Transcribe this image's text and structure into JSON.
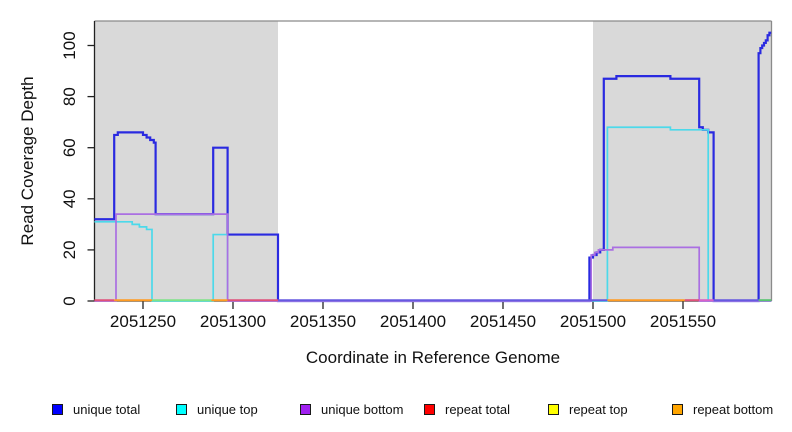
{
  "axes": {
    "x_title": "Coordinate in Reference Genome",
    "y_title": "Read Coverage Depth"
  },
  "legend": {
    "items": [
      {
        "label": "unique total",
        "color": "#0000ff"
      },
      {
        "label": "unique top",
        "color": "#00ffff"
      },
      {
        "label": "unique bottom",
        "color": "#a020f0"
      },
      {
        "label": "repeat total",
        "color": "#ff0000"
      },
      {
        "label": "repeat top",
        "color": "#ffff00"
      },
      {
        "label": "repeat bottom",
        "color": "#ffa500"
      }
    ]
  },
  "chart_data": {
    "type": "line",
    "title": "",
    "xlabel": "Coordinate in Reference Genome",
    "ylabel": "Read Coverage Depth",
    "xlim": [
      2051223,
      2051599
    ],
    "ylim": [
      0,
      111
    ],
    "x_ticks": [
      2051250,
      2051300,
      2051350,
      2051400,
      2051450,
      2051500,
      2051550
    ],
    "y_ticks": [
      0,
      20,
      40,
      60,
      80,
      100
    ],
    "grid": false,
    "legend_position": "bottom",
    "highlight_bands": {
      "color": "#d9d9d9",
      "regions": [
        {
          "x0": 2051223,
          "x1": 2051325
        },
        {
          "x0": 2051500,
          "x1": 2051599
        }
      ]
    },
    "series": [
      {
        "name": "unique total",
        "legend_color": "#0000ff",
        "line_color": "#2a2ae0",
        "width": 2.2,
        "steps": [
          [
            2051223,
            32
          ],
          [
            2051234,
            65
          ],
          [
            2051236,
            66
          ],
          [
            2051250,
            65
          ],
          [
            2051252,
            64
          ],
          [
            2051254,
            63
          ],
          [
            2051256,
            62
          ],
          [
            2051257,
            34
          ],
          [
            2051289,
            60
          ],
          [
            2051297,
            26
          ],
          [
            2051325,
            0
          ],
          [
            2051498,
            17
          ],
          [
            2051500,
            18
          ],
          [
            2051502,
            19
          ],
          [
            2051504,
            20
          ],
          [
            2051506,
            87
          ],
          [
            2051513,
            88
          ],
          [
            2051543,
            87
          ],
          [
            2051559,
            68
          ],
          [
            2051561,
            67
          ],
          [
            2051564,
            66
          ],
          [
            2051567,
            0
          ],
          [
            2051592,
            97
          ],
          [
            2051593,
            99
          ],
          [
            2051594,
            100
          ],
          [
            2051595,
            101
          ],
          [
            2051596,
            102
          ],
          [
            2051597,
            104
          ],
          [
            2051598,
            105
          ]
        ],
        "end": 2051599
      },
      {
        "name": "unique top",
        "legend_color": "#00ffff",
        "line_color": "#4cd9ea",
        "width": 1.7,
        "steps": [
          [
            2051223,
            31
          ],
          [
            2051244,
            30
          ],
          [
            2051248,
            29
          ],
          [
            2051252,
            28
          ],
          [
            2051255,
            0
          ],
          [
            2051289,
            26
          ],
          [
            2051297,
            0
          ],
          [
            2051508,
            68
          ],
          [
            2051543,
            67
          ],
          [
            2051564,
            0
          ]
        ],
        "end": 2051599
      },
      {
        "name": "unique bottom",
        "legend_color": "#a020f0",
        "line_color": "#aa6fe2",
        "width": 1.7,
        "steps": [
          [
            2051223,
            0
          ],
          [
            2051235,
            34
          ],
          [
            2051297,
            0
          ],
          [
            2051499,
            18
          ],
          [
            2051501,
            19
          ],
          [
            2051503,
            20
          ],
          [
            2051511,
            21
          ],
          [
            2051559,
            0
          ]
        ],
        "end": 2051599
      },
      {
        "name": "repeat total",
        "legend_color": "#ff0000",
        "line_color": "#e0507a",
        "width": 1.7,
        "steps": [
          [
            2051223,
            0
          ]
        ],
        "end": 2051599
      },
      {
        "name": "repeat top",
        "legend_color": "#ffff00",
        "line_color": "#ffe000",
        "width": 1.7,
        "steps": [
          [
            2051223,
            0
          ]
        ],
        "end": 2051599
      },
      {
        "name": "repeat bottom",
        "legend_color": "#ffa500",
        "line_color": "#ff9b21",
        "width": 1.7,
        "steps": [
          [
            2051223,
            0
          ]
        ],
        "end": 2051599
      }
    ],
    "baseline_segments": [
      {
        "x0": 2051223,
        "x1": 2051234,
        "color": "#e0507a"
      },
      {
        "x0": 2051234,
        "x1": 2051255,
        "color": "#ff9b21"
      },
      {
        "x0": 2051255,
        "x1": 2051288,
        "color": "#7fe388"
      },
      {
        "x0": 2051288,
        "x1": 2051297,
        "color": "#ff9b21"
      },
      {
        "x0": 2051297,
        "x1": 2051325,
        "color": "#e0507a"
      },
      {
        "x0": 2051325,
        "x1": 2051508,
        "color": "#6659e0"
      },
      {
        "x0": 2051508,
        "x1": 2051551,
        "color": "#ff9b21"
      },
      {
        "x0": 2051551,
        "x1": 2051559,
        "color": "#e0507a"
      },
      {
        "x0": 2051559,
        "x1": 2051567,
        "color": "#d861c9"
      },
      {
        "x0": 2051567,
        "x1": 2051592,
        "color": "#6659e0"
      },
      {
        "x0": 2051592,
        "x1": 2051599,
        "color": "#58c470"
      }
    ]
  }
}
